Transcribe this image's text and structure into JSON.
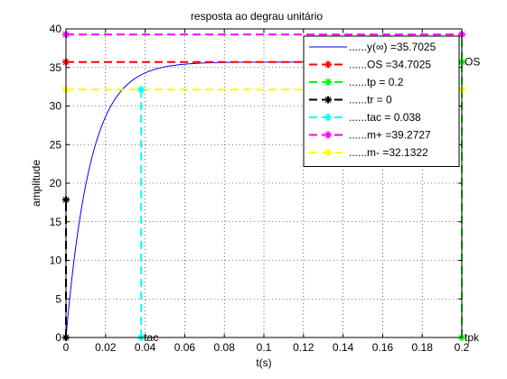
{
  "chart_data": {
    "type": "line",
    "title": "resposta ao degrau unitário",
    "xlabel": "t(s)",
    "ylabel": "amplitude",
    "xlim": [
      0,
      0.2
    ],
    "ylim": [
      0,
      40
    ],
    "xticks": [
      "0",
      "0.02",
      "0.04",
      "0.06",
      "0.08",
      "0.1",
      "0.12",
      "0.14",
      "0.16",
      "0.18",
      "0.2"
    ],
    "yticks": [
      "0",
      "5",
      "10",
      "15",
      "20",
      "25",
      "30",
      "35",
      "40"
    ],
    "grid": true,
    "legend_position": "top-right",
    "series": [
      {
        "name": "......y(∞) =35.7025",
        "color": "#0000ff",
        "style": "solid",
        "model": {
          "final": 35.7025,
          "tau": 0.01237
        }
      },
      {
        "name": "......OS =34.7025",
        "color": "#ff0000",
        "style": "dashed",
        "x": [
          0,
          0.2
        ],
        "y": [
          35.7025,
          35.7025
        ]
      },
      {
        "name": "......tp =    0.2",
        "color": "#00ff00",
        "style": "dashed",
        "x": [
          0.2,
          0.2
        ],
        "y": [
          0,
          39.2727
        ]
      },
      {
        "name": "......tr =      0",
        "color": "#000000",
        "style": "dashed",
        "x": [
          0,
          0
        ],
        "y": [
          0,
          17.85
        ]
      },
      {
        "name": "......tac =  0.038",
        "color": "#00ffff",
        "style": "dashed",
        "x": [
          0.038,
          0.038
        ],
        "y": [
          0,
          32.1322
        ]
      },
      {
        "name": "......m+ =39.2727",
        "color": "#ff00ff",
        "style": "dashed",
        "x": [
          0,
          0.2
        ],
        "y": [
          39.2727,
          39.2727
        ]
      },
      {
        "name": "......m- =32.1322",
        "color": "#ffff00",
        "style": "dashed",
        "x": [
          0,
          0.2
        ],
        "y": [
          32.1322,
          32.1322
        ]
      }
    ],
    "markers": [
      {
        "x": 0,
        "y": 39.2727,
        "color": "#ff00ff"
      },
      {
        "x": 0.2,
        "y": 39.2727,
        "color": "#ff00ff"
      },
      {
        "x": 0,
        "y": 35.7025,
        "color": "#ff0000"
      },
      {
        "x": 0.2,
        "y": 35.7025,
        "color": "#00ff00"
      },
      {
        "x": 0,
        "y": 32.1322,
        "color": "#ffff00"
      },
      {
        "x": 0.2,
        "y": 32.1322,
        "color": "#ffff00"
      },
      {
        "x": 0.038,
        "y": 32.1322,
        "color": "#00ffff"
      },
      {
        "x": 0,
        "y": 17.85,
        "color": "#000000"
      },
      {
        "x": 0,
        "y": 0,
        "color": "#000000"
      },
      {
        "x": 0.038,
        "y": 0,
        "color": "#00ffff"
      },
      {
        "x": 0.2,
        "y": 0,
        "color": "#00ff00"
      }
    ],
    "annotations": [
      {
        "text": "OS",
        "x": 0.2,
        "y": 35.7025
      },
      {
        "text": "tac",
        "x": 0.038,
        "y": 0
      },
      {
        "text": "tpk",
        "x": 0.2,
        "y": 0
      }
    ]
  }
}
